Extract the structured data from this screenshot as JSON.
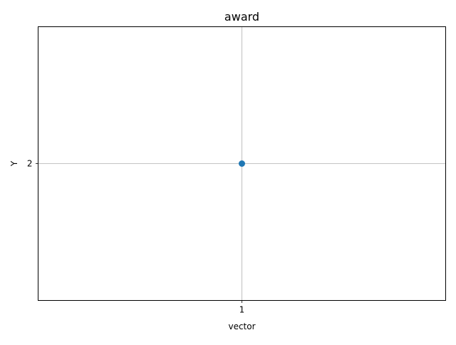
{
  "chart_data": {
    "type": "scatter",
    "title": "award",
    "xlabel": "vector",
    "ylabel": "Y",
    "x": [
      1
    ],
    "y": [
      2
    ],
    "xlim": [
      0.96,
      1.04
    ],
    "ylim": [
      1.96,
      2.04
    ],
    "xticks": [
      "1"
    ],
    "yticks": [
      "2"
    ],
    "grid": true,
    "marker_color": "#1f77b4",
    "grid_color": "#b0b0b0"
  }
}
